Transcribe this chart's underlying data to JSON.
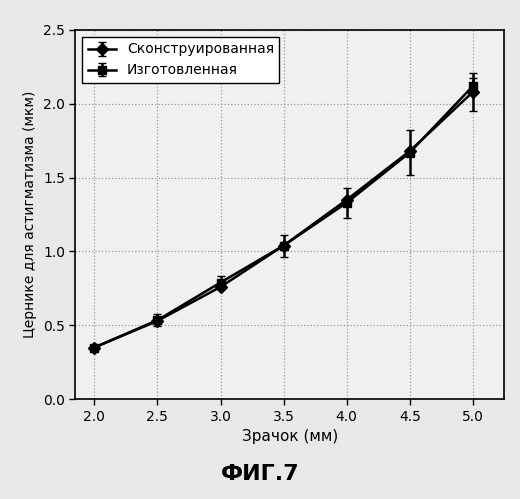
{
  "x": [
    2.0,
    2.5,
    3.0,
    3.5,
    4.0,
    4.5,
    5.0
  ],
  "y_designed": [
    0.35,
    0.53,
    0.76,
    1.04,
    1.35,
    1.68,
    2.08
  ],
  "y_manufactured": [
    0.35,
    0.535,
    0.79,
    1.04,
    1.33,
    1.67,
    2.12
  ],
  "yerr_manufactured": [
    0.0,
    0.04,
    0.045,
    0.075,
    0.1,
    0.15,
    0.055
  ],
  "yerr_designed": [
    0.0,
    0.0,
    0.0,
    0.0,
    0.0,
    0.0,
    0.13
  ],
  "xlabel": "Зрачок (мм)",
  "ylabel": "Цернике для астигматизма (мкм)",
  "legend_designed": "Сконструированная",
  "legend_manufactured": "Изготовленная",
  "caption": "ФИГ.7",
  "xlim": [
    1.85,
    5.25
  ],
  "ylim": [
    0.0,
    2.5
  ],
  "xticks": [
    2.0,
    2.5,
    3.0,
    3.5,
    4.0,
    4.5,
    5.0
  ],
  "yticks": [
    0.0,
    0.5,
    1.0,
    1.5,
    2.0,
    2.5
  ],
  "line_color": "#000000",
  "marker_designed": "D",
  "marker_manufactured": "s",
  "marker_size": 6,
  "linewidth": 1.8,
  "grid_color": "#999999",
  "bg_color": "#e8e8e8",
  "plot_bg_color": "#f0f0f0",
  "errorbar_capsize": 3,
  "title_fontsize": 16,
  "label_fontsize": 11,
  "tick_fontsize": 10,
  "legend_fontsize": 10,
  "caption_fontsize": 16
}
